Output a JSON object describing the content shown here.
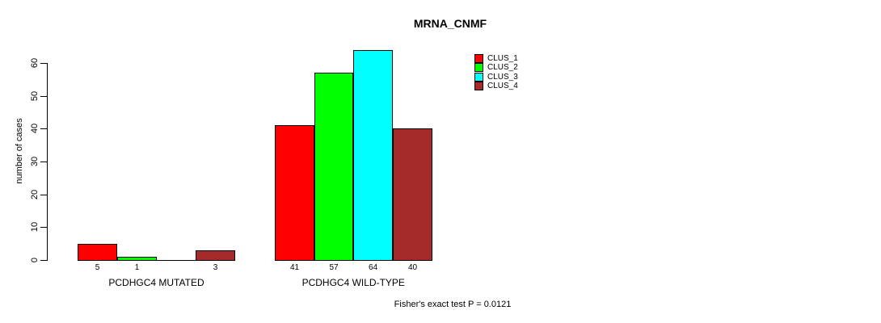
{
  "chart_data": {
    "type": "bar",
    "title": "MRNA_CNMF",
    "xlabel": "",
    "ylabel": "number of cases",
    "categories": [
      "PCDHGC4 MUTATED",
      "PCDHGC4 WILD-TYPE"
    ],
    "series": [
      {
        "name": "CLUS_1",
        "color": "#ff0000",
        "values": [
          5,
          41
        ]
      },
      {
        "name": "CLUS_2",
        "color": "#00ff00",
        "values": [
          1,
          57
        ]
      },
      {
        "name": "CLUS_3",
        "color": "#00ffff",
        "values": [
          0,
          64
        ]
      },
      {
        "name": "CLUS_4",
        "color": "#a52a2a",
        "values": [
          3,
          40
        ]
      }
    ],
    "ylim": [
      0,
      60
    ],
    "yticks": [
      0,
      10,
      20,
      30,
      40,
      50,
      60
    ],
    "grid": false,
    "legend_position": "top-right",
    "bar_value_labels": true,
    "hide_zero_value_labels": true,
    "annotation": "Fisher's exact test P = 0.0121"
  },
  "colors": {
    "axis": "#000000",
    "bar_border": "#000000",
    "background": "#ffffff",
    "text": "#000000"
  }
}
